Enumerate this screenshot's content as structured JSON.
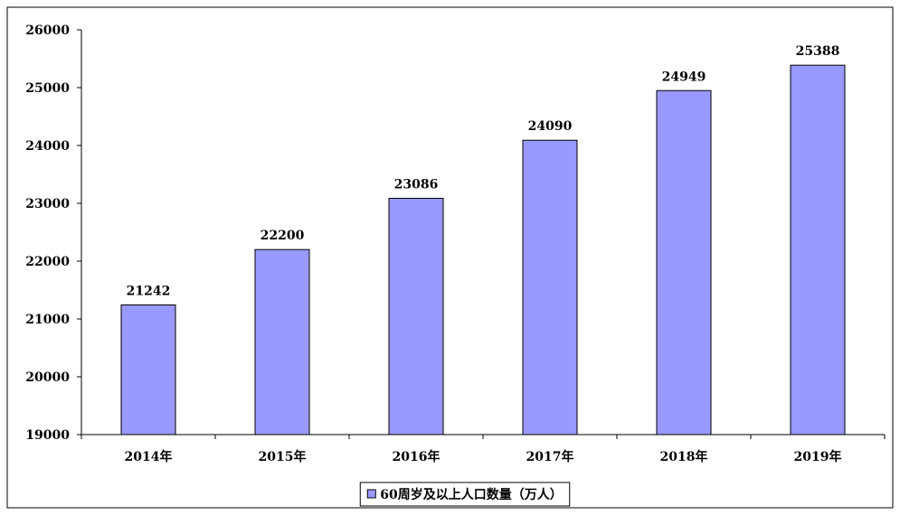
{
  "chart_data": {
    "type": "bar",
    "categories": [
      "2014年",
      "2015年",
      "2016年",
      "2017年",
      "2018年",
      "2019年"
    ],
    "series": [
      {
        "name": "60周岁及以上人口数量（万人）",
        "color": "#9999ff",
        "values": [
          21242,
          22200,
          23086,
          24090,
          24949,
          25388
        ]
      }
    ],
    "ylim": [
      19000,
      26000
    ],
    "yticks": [
      19000,
      20000,
      21000,
      22000,
      23000,
      24000,
      25000,
      26000
    ],
    "legend": "bottom"
  }
}
